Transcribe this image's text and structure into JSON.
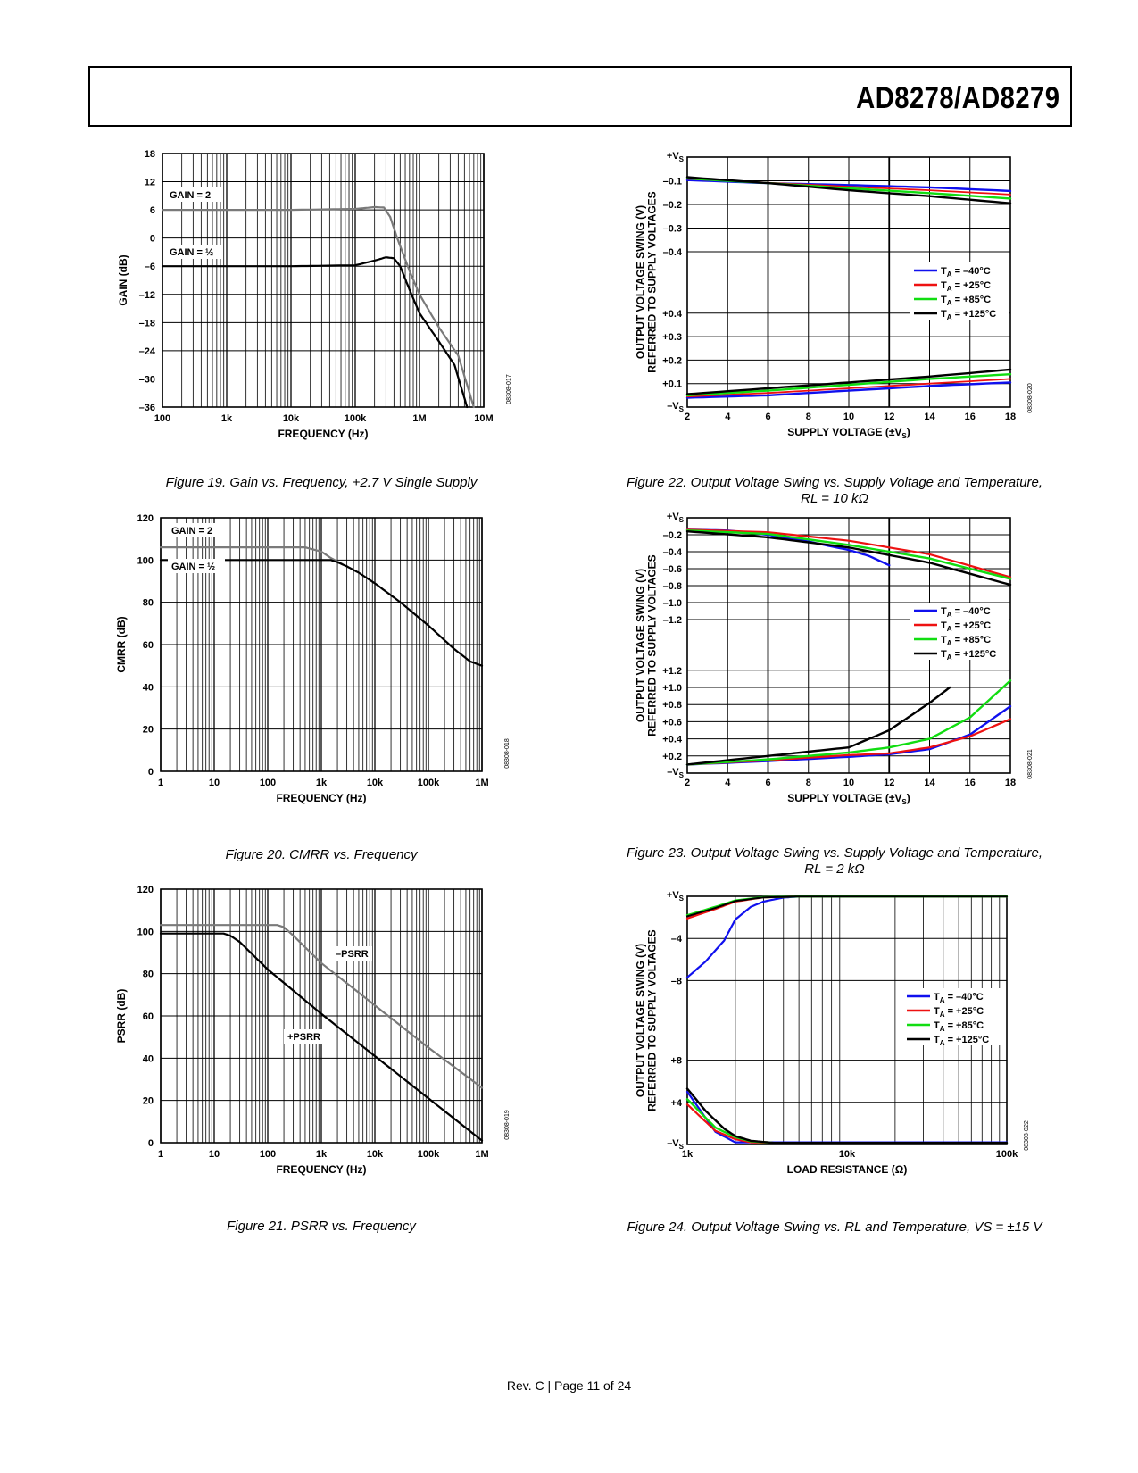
{
  "header": {
    "title": "AD8278/AD8279"
  },
  "footer": {
    "text": "Rev. C | Page 11 of 24"
  },
  "colors": {
    "blue": "#1010ee",
    "red": "#ee1111",
    "green": "#11dd11",
    "black": "#000000",
    "gray": "#7a7a7a"
  },
  "chart_data": [
    {
      "id": "fig19",
      "type": "line",
      "title": "",
      "ylabel": "GAIN (dB)",
      "xlabel": "FREQUENCY (Hz)",
      "xscale": "log",
      "xlim": [
        100,
        10000000
      ],
      "ylim": [
        -36,
        18
      ],
      "xticks": [
        100,
        1000,
        10000,
        100000,
        1000000,
        10000000
      ],
      "xtick_labels": [
        "100",
        "1k",
        "10k",
        "100k",
        "1M",
        "10M"
      ],
      "yticks": [
        -36,
        -30,
        -24,
        -18,
        -12,
        -6,
        0,
        6,
        12,
        18
      ],
      "ytick_labels": [
        "–36",
        "–30",
        "–24",
        "–18",
        "–12",
        "–6",
        "0",
        "6",
        "12",
        "18"
      ],
      "series": [
        {
          "name": "GAIN = 2",
          "color": "gray",
          "width": 2.2,
          "x": [
            100,
            10000,
            100000,
            200000,
            280000,
            350000,
            450000,
            700000,
            1000000,
            2000000,
            4000000,
            7000000
          ],
          "y": [
            6,
            6,
            6.2,
            6.6,
            6.5,
            4.5,
            0,
            -7,
            -12,
            -19,
            -25,
            -36
          ]
        },
        {
          "name": "GAIN = ½",
          "color": "black",
          "width": 2.2,
          "x": [
            100,
            10000,
            100000,
            200000,
            300000,
            400000,
            500000,
            700000,
            1000000,
            2000000,
            3500000,
            5500000
          ],
          "y": [
            -6,
            -6,
            -5.8,
            -4.8,
            -4.1,
            -4.3,
            -6,
            -11,
            -16,
            -22,
            -27,
            -36
          ]
        }
      ],
      "annotations": [
        "GAIN = 2",
        "GAIN = ½"
      ],
      "code": "08308-017"
    },
    {
      "id": "fig20",
      "type": "line",
      "title": "",
      "ylabel": "CMRR (dB)",
      "xlabel": "FREQUENCY (Hz)",
      "xscale": "log",
      "xlim": [
        1,
        1000000
      ],
      "ylim": [
        0,
        120
      ],
      "xticks": [
        1,
        10,
        100,
        1000,
        10000,
        100000,
        1000000
      ],
      "xtick_labels": [
        "1",
        "10",
        "100",
        "1k",
        "10k",
        "100k",
        "1M"
      ],
      "yticks": [
        0,
        20,
        40,
        60,
        80,
        100,
        120
      ],
      "ytick_labels": [
        "0",
        "20",
        "40",
        "60",
        "80",
        "100",
        "120"
      ],
      "series": [
        {
          "name": "GAIN = 2",
          "color": "gray",
          "width": 2.2,
          "x": [
            1,
            100,
            500,
            1000,
            1500,
            2500
          ],
          "y": [
            106,
            106,
            106,
            104,
            101,
            98
          ]
        },
        {
          "name": "GAIN = ½",
          "color": "black",
          "width": 2.2,
          "x": [
            1,
            100,
            1000,
            1500,
            2000,
            3000,
            5000,
            10000,
            30000,
            100000,
            300000,
            600000,
            1000000
          ],
          "y": [
            100,
            100,
            100,
            100,
            99,
            97,
            94,
            89,
            80,
            69,
            58,
            52,
            50
          ]
        }
      ],
      "annotations": [
        "GAIN = 2",
        "GAIN = ½"
      ],
      "code": "08308-018"
    },
    {
      "id": "fig21",
      "type": "line",
      "title": "",
      "ylabel": "PSRR (dB)",
      "xlabel": "FREQUENCY (Hz)",
      "xscale": "log",
      "xlim": [
        1,
        1000000
      ],
      "ylim": [
        0,
        120
      ],
      "xticks": [
        1,
        10,
        100,
        1000,
        10000,
        100000,
        1000000
      ],
      "xtick_labels": [
        "1",
        "10",
        "100",
        "1k",
        "10k",
        "100k",
        "1M"
      ],
      "yticks": [
        0,
        20,
        40,
        60,
        80,
        100,
        120
      ],
      "ytick_labels": [
        "0",
        "20",
        "40",
        "60",
        "80",
        "100",
        "120"
      ],
      "series": [
        {
          "name": "–PSRR",
          "color": "gray",
          "width": 2.2,
          "x": [
            1,
            100,
            150,
            200,
            300,
            1000,
            10000,
            100000,
            1000000
          ],
          "y": [
            103,
            103,
            103,
            102,
            98,
            85,
            65,
            45,
            26
          ]
        },
        {
          "name": "+PSRR",
          "color": "black",
          "width": 2.2,
          "x": [
            1,
            10,
            15,
            20,
            30,
            100,
            1000,
            10000,
            100000,
            1000000
          ],
          "y": [
            99,
            99,
            99,
            98,
            95,
            82,
            61,
            41,
            21,
            1
          ]
        }
      ],
      "annotations": [
        "–PSRR",
        "+PSRR"
      ],
      "code": "08308-019"
    },
    {
      "id": "fig22",
      "type": "line",
      "title": "",
      "ylabel": "OUTPUT VOLTAGE SWING (V)\nREFERRED TO SUPPLY VOLTAGES",
      "xlabel": "SUPPLY VOLTAGE (±VS)",
      "xscale": "linear",
      "xlim": [
        2,
        18
      ],
      "ylim": [
        -0.5,
        0.5
      ],
      "split_axis": true,
      "xticks": [
        2,
        4,
        6,
        8,
        10,
        12,
        14,
        16,
        18
      ],
      "xtick_labels": [
        "2",
        "4",
        "6",
        "8",
        "10",
        "12",
        "14",
        "16",
        "18"
      ],
      "ytick_labels": [
        "+VS",
        "–0.1",
        "–0.2",
        "–0.3",
        "–0.4",
        "+0.4",
        "+0.3",
        "+0.2",
        "+0.1",
        "–VS"
      ],
      "legend": [
        "TA = –40°C",
        "TA = +25°C",
        "TA = +85°C",
        "TA = +125°C"
      ],
      "series": [
        {
          "name": "TA = –40°C",
          "color": "blue",
          "width": 2.4,
          "group": "top",
          "x": [
            2,
            6,
            10,
            14,
            18
          ],
          "y": [
            0.097,
            0.11,
            0.118,
            0.128,
            0.143
          ]
        },
        {
          "name": "TA = +25°C",
          "color": "red",
          "width": 1.8,
          "group": "top",
          "x": [
            2,
            6,
            10,
            14,
            18
          ],
          "y": [
            0.092,
            0.108,
            0.125,
            0.14,
            0.158
          ]
        },
        {
          "name": "TA = +85°C",
          "color": "green",
          "width": 2.4,
          "group": "top",
          "x": [
            2,
            6,
            10,
            14,
            18
          ],
          "y": [
            0.09,
            0.11,
            0.132,
            0.152,
            0.175
          ]
        },
        {
          "name": "TA = +125°C",
          "color": "black",
          "width": 2.4,
          "group": "top",
          "x": [
            2,
            6,
            10,
            14,
            18
          ],
          "y": [
            0.085,
            0.11,
            0.14,
            0.165,
            0.195
          ]
        },
        {
          "name": "TA = –40°C",
          "color": "blue",
          "width": 2.4,
          "group": "bottom",
          "x": [
            2,
            6,
            10,
            14,
            18
          ],
          "y": [
            0.04,
            0.05,
            0.07,
            0.09,
            0.105
          ]
        },
        {
          "name": "TA = +25°C",
          "color": "red",
          "width": 1.8,
          "group": "bottom",
          "x": [
            2,
            6,
            10,
            14,
            18
          ],
          "y": [
            0.045,
            0.06,
            0.08,
            0.1,
            0.12
          ]
        },
        {
          "name": "TA = +85°C",
          "color": "green",
          "width": 2.4,
          "group": "bottom",
          "x": [
            2,
            6,
            10,
            14,
            18
          ],
          "y": [
            0.05,
            0.07,
            0.095,
            0.12,
            0.14
          ]
        },
        {
          "name": "TA = +125°C",
          "color": "black",
          "width": 2.4,
          "group": "bottom",
          "x": [
            2,
            6,
            10,
            14,
            18
          ],
          "y": [
            0.055,
            0.08,
            0.105,
            0.13,
            0.16
          ]
        }
      ],
      "code": "08308-020"
    },
    {
      "id": "fig23",
      "type": "line",
      "title": "",
      "ylabel": "OUTPUT VOLTAGE SWING (V)\nREFERRED TO SUPPLY VOLTAGES",
      "xlabel": "SUPPLY VOLTAGE (±VS)",
      "xscale": "linear",
      "xlim": [
        2,
        18
      ],
      "split_axis": true,
      "xticks": [
        2,
        4,
        6,
        8,
        10,
        12,
        14,
        16,
        18
      ],
      "xtick_labels": [
        "2",
        "4",
        "6",
        "8",
        "10",
        "12",
        "14",
        "16",
        "18"
      ],
      "ytick_labels": [
        "+VS",
        "–0.2",
        "–0.4",
        "–0.6",
        "–0.8",
        "–1.0",
        "–1.2",
        "+1.2",
        "+1.0",
        "+0.8",
        "+0.6",
        "+0.4",
        "+0.2",
        "–VS"
      ],
      "legend": [
        "TA = –40°C",
        "TA = +25°C",
        "TA = +85°C",
        "TA = +125°C"
      ],
      "series": [
        {
          "name": "TA = –40°C",
          "color": "blue",
          "width": 2.4,
          "group": "top",
          "x": [
            2,
            4,
            6,
            8,
            10,
            11,
            12
          ],
          "y": [
            0.14,
            0.15,
            0.2,
            0.28,
            0.38,
            0.45,
            0.56
          ]
        },
        {
          "name": "TA = +25°C",
          "color": "red",
          "width": 2.2,
          "group": "top",
          "x": [
            2,
            6,
            10,
            14,
            18
          ],
          "y": [
            0.14,
            0.17,
            0.27,
            0.43,
            0.7
          ]
        },
        {
          "name": "TA = +85°C",
          "color": "green",
          "width": 2.4,
          "group": "top",
          "x": [
            2,
            6,
            10,
            14,
            18
          ],
          "y": [
            0.15,
            0.19,
            0.32,
            0.48,
            0.72
          ]
        },
        {
          "name": "TA = +125°C",
          "color": "black",
          "width": 2.4,
          "group": "top",
          "x": [
            2,
            6,
            10,
            14,
            18
          ],
          "y": [
            0.16,
            0.23,
            0.35,
            0.53,
            0.79
          ]
        },
        {
          "name": "TA = –40°C",
          "color": "blue",
          "width": 2.4,
          "group": "bottom",
          "x": [
            2,
            6,
            10,
            12,
            14,
            16,
            18
          ],
          "y": [
            0.1,
            0.14,
            0.19,
            0.22,
            0.28,
            0.45,
            0.78
          ]
        },
        {
          "name": "TA = +25°C",
          "color": "red",
          "width": 2.2,
          "group": "bottom",
          "x": [
            2,
            6,
            10,
            12,
            14,
            16,
            18
          ],
          "y": [
            0.1,
            0.15,
            0.21,
            0.23,
            0.3,
            0.43,
            0.63
          ]
        },
        {
          "name": "TA = +85°C",
          "color": "green",
          "width": 2.4,
          "group": "bottom",
          "x": [
            2,
            6,
            10,
            12,
            14,
            16,
            18
          ],
          "y": [
            0.1,
            0.16,
            0.24,
            0.3,
            0.4,
            0.65,
            1.08
          ]
        },
        {
          "name": "TA = +125°C",
          "color": "black",
          "width": 2.4,
          "group": "bottom",
          "x": [
            2,
            6,
            8,
            10,
            12,
            14,
            15
          ],
          "y": [
            0.1,
            0.2,
            0.25,
            0.3,
            0.5,
            0.82,
            1.0
          ]
        }
      ],
      "code": "08308-021"
    },
    {
      "id": "fig24",
      "type": "line",
      "title": "",
      "ylabel": "OUTPUT VOLTAGE SWING (V)\nREFERRED TO SUPPLY VOLTAGES",
      "xlabel": "LOAD RESISTANCE (Ω)",
      "xscale": "log",
      "xlim": [
        1000,
        100000
      ],
      "split_axis": true,
      "xticks": [
        1000,
        10000,
        100000
      ],
      "xtick_labels": [
        "1k",
        "10k",
        "100k"
      ],
      "ytick_labels": [
        "+VS",
        "–4",
        "–8",
        "+8",
        "+4",
        "–VS"
      ],
      "legend": [
        "TA = –40°C",
        "TA = +25°C",
        "TA = +85°C",
        "TA = +125°C"
      ],
      "series": [
        {
          "name": "TA = –40°C",
          "color": "blue",
          "width": 2.2,
          "group": "top",
          "x": [
            1000,
            1300,
            1700,
            2000,
            2500,
            3000,
            4000,
            5000,
            100000
          ],
          "y": [
            7.7,
            6.2,
            4.2,
            2.2,
            1.0,
            0.5,
            0.12,
            0.02,
            0.02
          ]
        },
        {
          "name": "TA = +25°C",
          "color": "red",
          "width": 2.2,
          "group": "top",
          "x": [
            1000,
            1500,
            2000,
            3000,
            5000,
            100000
          ],
          "y": [
            2.1,
            1.2,
            0.5,
            0.1,
            0.02,
            0.02
          ]
        },
        {
          "name": "TA = +85°C",
          "color": "green",
          "width": 2.4,
          "group": "top",
          "x": [
            1000,
            1500,
            2000,
            3000,
            5000,
            100000
          ],
          "y": [
            1.8,
            1.0,
            0.4,
            0.08,
            0.02,
            0.02
          ]
        },
        {
          "name": "TA = +125°C",
          "color": "black",
          "width": 2.0,
          "group": "top",
          "x": [
            1000,
            1500,
            2000,
            3000,
            5000,
            100000
          ],
          "y": [
            1.9,
            1.1,
            0.45,
            0.1,
            0.02,
            0.02
          ]
        },
        {
          "name": "TA = –40°C",
          "color": "blue",
          "width": 2.2,
          "group": "bottom",
          "x": [
            1000,
            1500,
            2000,
            3000,
            100000
          ],
          "y": [
            5.0,
            1.2,
            0.2,
            0.2,
            0.2
          ]
        },
        {
          "name": "TA = +25°C",
          "color": "red",
          "width": 2.2,
          "group": "bottom",
          "x": [
            1000,
            1500,
            2000,
            2500,
            3500,
            100000
          ],
          "y": [
            3.8,
            1.3,
            0.5,
            0.2,
            0.15,
            0.15
          ]
        },
        {
          "name": "TA = +85°C",
          "color": "green",
          "width": 2.4,
          "group": "bottom",
          "x": [
            1000,
            1500,
            2000,
            2500,
            3500,
            100000
          ],
          "y": [
            4.3,
            1.6,
            0.7,
            0.3,
            0.15,
            0.15
          ]
        },
        {
          "name": "TA = +125°C",
          "color": "black",
          "width": 2.4,
          "group": "bottom",
          "x": [
            1000,
            1300,
            1700,
            2000,
            2500,
            3500,
            100000
          ],
          "y": [
            5.3,
            3.2,
            1.5,
            0.8,
            0.35,
            0.15,
            0.15
          ]
        }
      ],
      "code": "08308-022"
    }
  ],
  "captions": {
    "fig19": "Figure 19. Gain vs. Frequency, +2.7 V Single Supply",
    "fig20": "Figure 20. CMRR vs. Frequency",
    "fig21": "Figure 21. PSRR vs. Frequency",
    "fig22_line1": "Figure 22. Output Voltage Swing vs. Supply Voltage and Temperature,",
    "fig22_line2": "RL = 10 kΩ",
    "fig23_line1": "Figure 23. Output Voltage Swing vs. Supply Voltage and Temperature,",
    "fig23_line2": "RL = 2 kΩ",
    "fig24": "Figure 24. Output Voltage Swing vs. RL and Temperature, VS = ±15 V"
  }
}
